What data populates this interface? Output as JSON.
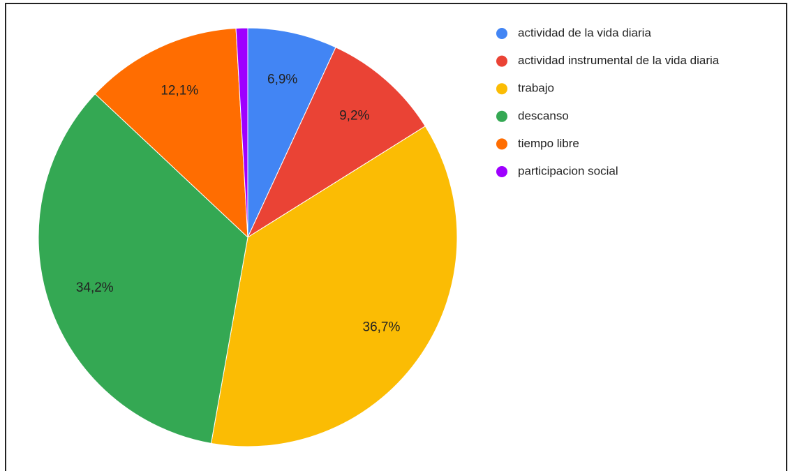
{
  "chart_data": {
    "type": "pie",
    "categories": [
      "actividad de la vida diaria",
      "actividad instrumental de la vida diaria",
      "trabajo",
      "descanso",
      "tiempo libre",
      "participacion social"
    ],
    "values": [
      6.9,
      9.2,
      36.7,
      34.2,
      12.1,
      0.9
    ],
    "value_labels": [
      "6,9%",
      "9,2%",
      "36,7%",
      "34,2%",
      "12,1%",
      null
    ],
    "colors": [
      "#4285f4",
      "#ea4335",
      "#fbbc04",
      "#34a853",
      "#ff6d01",
      "#9e00ff"
    ],
    "legend": "right"
  }
}
